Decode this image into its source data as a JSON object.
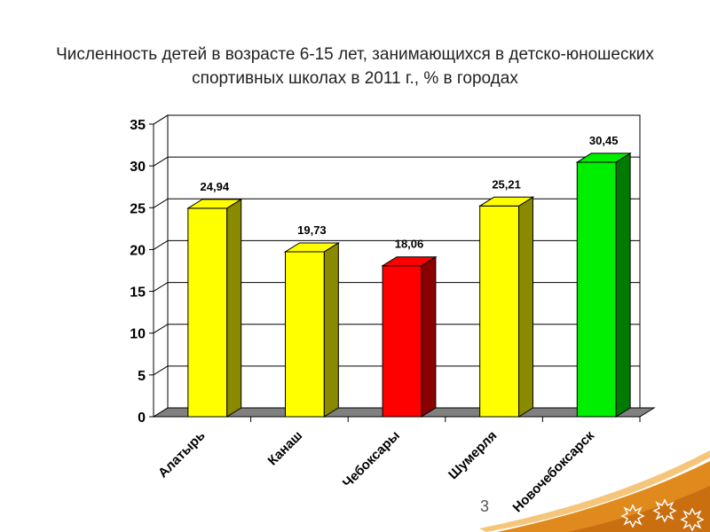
{
  "title": "Численность детей в возрасте 6-15 лет, занимающихся в детско-юношеских спортивных школах в 2011 г., % в городах",
  "slide_number": "3",
  "chart_data": {
    "type": "bar",
    "title": "Численность детей в возрасте 6-15 лет, занимающихся в детско-юношеских спортивных школах в 2011 г., % в городах",
    "categories": [
      "Алатырь",
      "Канаш",
      "Чебоксары",
      "Шумерля",
      "Новочебоксарск"
    ],
    "values": [
      24.94,
      19.73,
      18.06,
      25.21,
      30.45
    ],
    "value_labels": [
      "24,94",
      "19,73",
      "18,06",
      "25,21",
      "30,45"
    ],
    "colors": [
      "#ffff00",
      "#ffff00",
      "#ff0000",
      "#ffff00",
      "#00ee00"
    ],
    "side_colors": [
      "#8a8a00",
      "#8a8a00",
      "#8b0000",
      "#8a8a00",
      "#007a00"
    ],
    "ylim": [
      0,
      35
    ],
    "yticks": [
      "0",
      "5",
      "10",
      "15",
      "20",
      "25",
      "30",
      "35"
    ],
    "grid": true,
    "legend": "none",
    "xlabel": "",
    "ylabel": ""
  }
}
